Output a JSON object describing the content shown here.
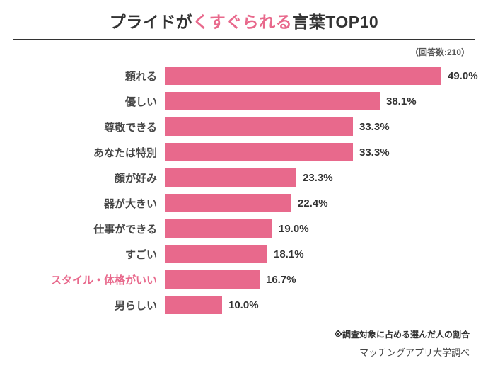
{
  "header": {
    "title_prefix": "プライドが",
    "title_highlight": "くすぐられる",
    "title_suffix": "言葉TOP10",
    "response_note": "（回答数:210）"
  },
  "footer": {
    "note": "※調査対象に占める選んだ人の割合",
    "source": "マッチングアプリ大学調べ"
  },
  "colors": {
    "bar": "#e8698c",
    "title_highlight": "#e8698c",
    "text": "#333333",
    "category_label": "#474747",
    "highlighted_label": "#e8698c"
  },
  "chart_data": {
    "type": "bar",
    "orientation": "horizontal",
    "title": "プライドがくすぐられる言葉TOP10",
    "categories": [
      "頼れる",
      "優しい",
      "尊敬できる",
      "あなたは特別",
      "顔が好み",
      "器が大きい",
      "仕事ができる",
      "すごい",
      "スタイル・体格がいい",
      "男らしい"
    ],
    "values": [
      49.0,
      38.1,
      33.3,
      33.3,
      23.3,
      22.4,
      19.0,
      18.1,
      16.7,
      10.0
    ],
    "value_labels": [
      "49.0%",
      "38.1%",
      "33.3%",
      "33.3%",
      "23.3%",
      "22.4%",
      "19.0%",
      "18.1%",
      "16.7%",
      "10.0%"
    ],
    "highlighted_category_index": 8,
    "xlim": [
      0,
      49
    ],
    "grid": false,
    "legend": false
  }
}
